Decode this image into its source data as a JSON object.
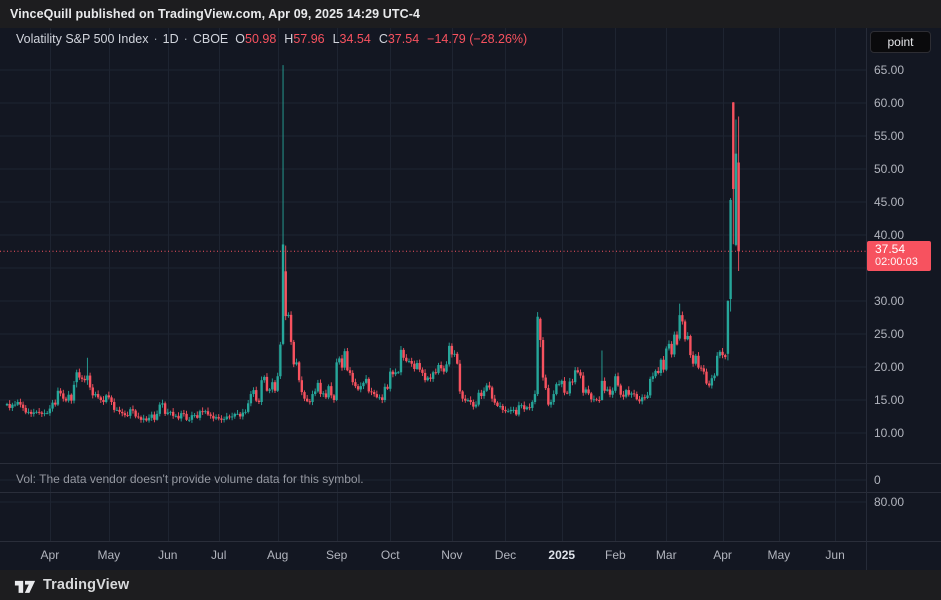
{
  "attribution": {
    "text": "VinceQuill published on TradingView.com, Apr 09, 2025 14:29 UTC-4"
  },
  "legend": {
    "title": "Volatility S&P 500 Index",
    "separator": "·",
    "interval": "1D",
    "exchange": "CBOE",
    "ohlc": [
      {
        "k": "O",
        "v": "50.98"
      },
      {
        "k": "H",
        "v": "57.96"
      },
      {
        "k": "L",
        "v": "34.54"
      },
      {
        "k": "C",
        "v": "37.54"
      }
    ],
    "change": "−14.79 (−28.26%)"
  },
  "volume_note": "Vol: The data vendor doesn't provide volume data for this symbol.",
  "price_scale": {
    "unit_button": "point",
    "ticks": [
      65,
      60,
      55,
      50,
      45,
      40,
      30,
      25,
      20,
      15,
      10
    ],
    "sub_tick_labels": [
      "0",
      "80.00"
    ],
    "price_label": {
      "price": "37.54",
      "countdown": "02:00:03"
    }
  },
  "footer": {
    "brand": "TradingView"
  },
  "colors": {
    "up": "#26a69a",
    "down": "#f7525f",
    "background": "#131722",
    "grid": "#1e2431",
    "divider": "#2a2e3a",
    "axis_text": "#b2b5be",
    "price_label_bg": "#f7525f"
  },
  "chart_data": {
    "type": "candlestick",
    "title": "Volatility S&P 500 Index",
    "interval": "1D",
    "exchange": "CBOE",
    "unit": "point",
    "last_bar": {
      "open": 50.98,
      "high": 57.96,
      "low": 34.54,
      "close": 37.54,
      "change": -14.79,
      "change_pct": -28.26
    },
    "price_line": 37.54,
    "ylim": [
      8,
      68
    ],
    "grid_levels": [
      65,
      60,
      55,
      50,
      45,
      40,
      35,
      30,
      25,
      20,
      15,
      10
    ],
    "x_labels": [
      {
        "text": "Apr",
        "index": 16
      },
      {
        "text": "May",
        "index": 38
      },
      {
        "text": "Jun",
        "index": 60
      },
      {
        "text": "Jul",
        "index": 79
      },
      {
        "text": "Aug",
        "index": 101
      },
      {
        "text": "Sep",
        "index": 123
      },
      {
        "text": "Oct",
        "index": 143
      },
      {
        "text": "Nov",
        "index": 166
      },
      {
        "text": "Dec",
        "index": 186
      },
      {
        "text": "2025",
        "index": 207,
        "bold": true
      },
      {
        "text": "Feb",
        "index": 227
      },
      {
        "text": "Mar",
        "index": 246
      },
      {
        "text": "Apr",
        "index": 267
      },
      {
        "text": "May",
        "index": 288
      },
      {
        "text": "Jun",
        "index": 309
      }
    ],
    "months": [
      {
        "label": "Mar 2024",
        "closes": [
          14.4,
          13.8,
          14.3,
          14.3,
          14.7,
          14.3,
          13.8,
          13.1,
          13.2,
          12.9,
          13.1,
          13.2,
          13.1,
          12.9,
          13.0,
          13.0
        ]
      },
      {
        "label": "Apr 2024",
        "closes": [
          13.7,
          14.6,
          14.3,
          16.4,
          16.0,
          15.2,
          14.9,
          15.8,
          14.9,
          17.3,
          19.2,
          18.4,
          18.2,
          18.0,
          18.7,
          16.9,
          15.7,
          15.9,
          15.4,
          15.0,
          14.7,
          15.7
        ]
      },
      {
        "label": "May 2024",
        "closes": [
          15.4,
          14.7,
          13.5,
          13.5,
          13.2,
          13.0,
          12.7,
          12.6,
          13.6,
          13.4,
          12.5,
          12.4,
          12.0,
          12.2,
          11.9,
          12.3,
          12.8,
          12.0,
          12.9,
          14.3,
          14.5,
          12.9
        ]
      },
      {
        "label": "Jun 2024",
        "closes": [
          13.1,
          13.2,
          12.6,
          12.6,
          12.2,
          13.0,
          12.9,
          12.0,
          12.0,
          12.7,
          12.7,
          12.3,
          13.3,
          13.2,
          13.3,
          12.8,
          12.6,
          12.2,
          12.4
        ]
      },
      {
        "label": "Jul 2024",
        "closes": [
          12.2,
          12.0,
          12.1,
          12.5,
          12.4,
          12.5,
          12.9,
          12.9,
          12.5,
          13.1,
          13.2,
          14.5,
          15.9,
          16.5,
          14.9,
          14.7,
          18.0,
          18.5,
          16.4,
          16.6,
          17.7,
          16.4
        ]
      },
      {
        "label": "Aug 2024",
        "closes": [
          18.6,
          23.4,
          38.6,
          27.7,
          27.9,
          23.8,
          20.4,
          20.7,
          18.0,
          16.2,
          15.2,
          14.8,
          14.7,
          15.9,
          16.3,
          17.6,
          15.9,
          16.0,
          15.4,
          17.1,
          15.7,
          15.0
        ]
      },
      {
        "label": "Sep 2024",
        "closes": [
          20.7,
          21.3,
          19.9,
          22.4,
          19.5,
          19.1,
          17.7,
          17.1,
          16.6,
          17.1,
          17.6,
          18.2,
          16.3,
          16.2,
          15.9,
          15.4,
          15.4,
          15.0,
          17.0,
          16.7
        ]
      },
      {
        "label": "Oct 2024",
        "closes": [
          19.3,
          18.9,
          19.2,
          19.2,
          22.6,
          21.4,
          20.9,
          20.9,
          20.5,
          19.7,
          20.6,
          19.6,
          19.1,
          18.0,
          18.4,
          18.2,
          19.2,
          19.1,
          20.3,
          19.8,
          19.3,
          20.4,
          23.2
        ]
      },
      {
        "label": "Nov 2024",
        "closes": [
          21.9,
          22.0,
          20.5,
          16.3,
          15.2,
          14.9,
          15.0,
          14.7,
          14.0,
          14.3,
          16.1,
          15.6,
          16.4,
          17.2,
          16.9,
          15.2,
          14.6,
          14.1,
          14.1,
          13.5
        ]
      },
      {
        "label": "Dec 2024",
        "closes": [
          13.3,
          13.3,
          13.5,
          13.5,
          12.8,
          14.2,
          14.2,
          13.6,
          13.9,
          13.8,
          14.7,
          15.9,
          27.6,
          24.1,
          18.4,
          16.8,
          14.3,
          14.7,
          15.9,
          17.4,
          17.4
        ]
      },
      {
        "label": "Jan 2025",
        "closes": [
          17.9,
          16.1,
          16.0,
          17.8,
          17.7,
          19.5,
          19.2,
          18.7,
          16.1,
          16.6,
          16.0,
          15.1,
          15.1,
          15.0,
          14.9,
          17.9,
          16.4,
          16.6,
          15.8,
          16.4
        ]
      },
      {
        "label": "Feb 2025",
        "closes": [
          18.6,
          17.2,
          15.8,
          15.5,
          16.5,
          15.8,
          16.0,
          15.9,
          15.1,
          14.8,
          15.4,
          15.3,
          15.7,
          18.2,
          18.6,
          19.4,
          19.1,
          21.1,
          19.6
        ]
      },
      {
        "label": "Mar 2025",
        "closes": [
          22.8,
          23.5,
          21.9,
          24.9,
          23.4,
          27.9,
          26.9,
          24.2,
          24.7,
          21.8,
          20.5,
          21.7,
          19.9,
          19.8,
          19.3,
          17.5,
          17.2,
          18.3,
          18.7,
          21.7,
          22.3
        ]
      },
      {
        "label": "Apr 2025",
        "closes": [
          21.8,
          21.5,
          30.0,
          45.3,
          46.98,
          52.33,
          37.54
        ]
      }
    ],
    "ohlc_overrides": {
      "1:10": [
        17.7,
        19.6,
        16.9,
        19.2
      ],
      "1:14": [
        18.0,
        21.4,
        17.3,
        18.7
      ],
      "5:2": [
        23.5,
        65.73,
        23.3,
        38.57
      ],
      "5:3": [
        34.5,
        38.4,
        27.1,
        27.71
      ],
      "9:12": [
        15.9,
        28.32,
        15.6,
        27.62
      ],
      "9:13": [
        27.3,
        27.5,
        23.0,
        24.09
      ],
      "10:15": [
        15.0,
        22.5,
        14.9,
        17.9
      ],
      "12:5": [
        24.3,
        29.6,
        24.0,
        27.86
      ],
      "13:2": [
        22.0,
        30.1,
        21.0,
        30.02
      ],
      "13:3": [
        30.3,
        45.6,
        28.4,
        45.31
      ],
      "13:4": [
        60.1,
        60.13,
        38.6,
        46.98
      ],
      "13:5": [
        38.5,
        57.5,
        38.3,
        52.33
      ],
      "13:6": [
        50.98,
        57.96,
        34.54,
        37.54
      ]
    }
  }
}
